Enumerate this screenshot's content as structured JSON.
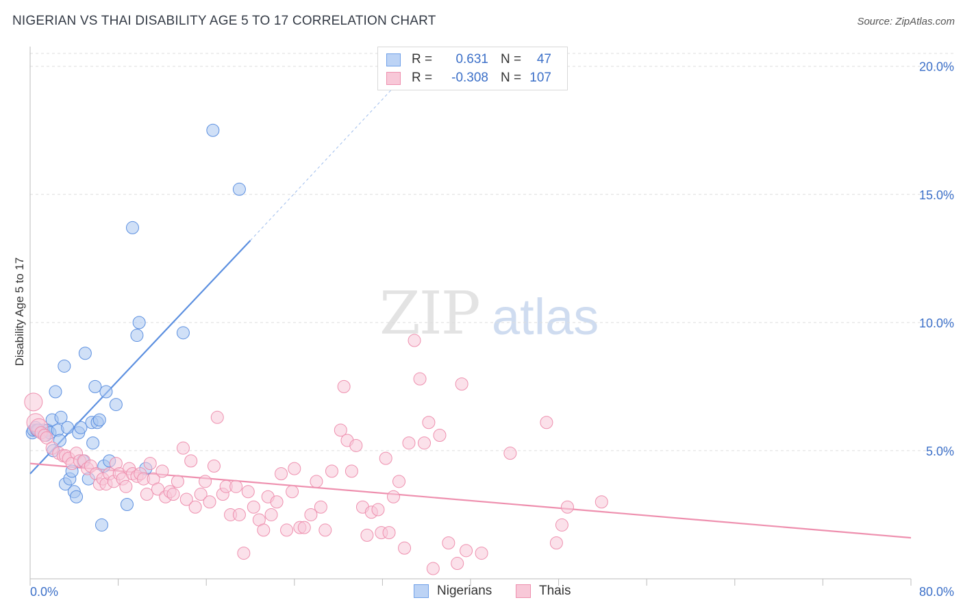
{
  "title": "NIGERIAN VS THAI DISABILITY AGE 5 TO 17 CORRELATION CHART",
  "source": "Source: ZipAtlas.com",
  "watermark": {
    "zip": "ZIP",
    "atlas": "atlas"
  },
  "legend": {
    "rows": [
      {
        "r_label": "R =",
        "r_value": "0.631",
        "n_label": "N =",
        "n_value": "47",
        "color": "#6fa0e8",
        "fill": "#bcd3f5"
      },
      {
        "r_label": "R =",
        "r_value": "-0.308",
        "n_label": "N =",
        "n_value": "107",
        "color": "#ee8fae",
        "fill": "#f8c8d8"
      }
    ]
  },
  "bottom_legend": [
    {
      "label": "Nigerians",
      "color": "#6fa0e8",
      "fill": "#bcd3f5"
    },
    {
      "label": "Thais",
      "color": "#ee8fae",
      "fill": "#f8c8d8"
    }
  ],
  "axes": {
    "x_min_label": "0.0%",
    "x_max_label": "80.0%",
    "y_ticks": [
      "5.0%",
      "10.0%",
      "15.0%",
      "20.0%"
    ],
    "ylabel": "Disability Age 5 to 17"
  },
  "chart_data": {
    "type": "scatter",
    "title": "NIGERIAN VS THAI DISABILITY AGE 5 TO 17 CORRELATION CHART",
    "xlabel": "",
    "ylabel": "Disability Age 5 to 17",
    "xlim": [
      0,
      80
    ],
    "ylim": [
      0,
      20.5
    ],
    "grid": true,
    "series": [
      {
        "name": "Nigerians",
        "color": "#5b8fe0",
        "fill": "#a9c6f0",
        "points": [
          [
            0.2,
            5.7
          ],
          [
            0.3,
            5.8
          ],
          [
            0.5,
            5.9
          ],
          [
            0.6,
            5.8
          ],
          [
            0.8,
            5.8
          ],
          [
            1.0,
            5.7
          ],
          [
            1.2,
            5.8
          ],
          [
            1.4,
            5.6
          ],
          [
            1.6,
            5.8
          ],
          [
            1.8,
            5.7
          ],
          [
            2.0,
            6.2
          ],
          [
            2.1,
            5.0
          ],
          [
            2.3,
            7.3
          ],
          [
            2.5,
            5.8
          ],
          [
            2.7,
            5.4
          ],
          [
            2.8,
            6.3
          ],
          [
            3.1,
            8.3
          ],
          [
            3.2,
            3.7
          ],
          [
            3.4,
            5.9
          ],
          [
            3.6,
            3.9
          ],
          [
            3.8,
            4.2
          ],
          [
            4.0,
            3.4
          ],
          [
            4.2,
            3.2
          ],
          [
            4.4,
            5.7
          ],
          [
            4.6,
            5.9
          ],
          [
            4.8,
            4.6
          ],
          [
            5.0,
            8.8
          ],
          [
            5.3,
            3.9
          ],
          [
            5.6,
            6.1
          ],
          [
            5.7,
            5.3
          ],
          [
            5.9,
            7.5
          ],
          [
            6.1,
            6.1
          ],
          [
            6.3,
            6.2
          ],
          [
            6.5,
            2.1
          ],
          [
            6.7,
            4.4
          ],
          [
            6.9,
            7.3
          ],
          [
            7.2,
            4.6
          ],
          [
            7.8,
            6.8
          ],
          [
            8.8,
            2.9
          ],
          [
            9.3,
            13.7
          ],
          [
            9.7,
            9.5
          ],
          [
            9.9,
            10.0
          ],
          [
            10.5,
            4.3
          ],
          [
            13.9,
            9.6
          ],
          [
            16.6,
            17.5
          ],
          [
            19.0,
            15.2
          ],
          [
            0.7,
            5.8
          ]
        ],
        "trend": {
          "x0": 0,
          "y0": 4.1,
          "x1": 20.0,
          "y1": 13.2,
          "dash_x1": 33.5,
          "dash_y1": 19.4
        }
      },
      {
        "name": "Thais",
        "color": "#ee8fae",
        "fill": "#f8c8d8",
        "points": [
          [
            0.3,
            6.9
          ],
          [
            0.5,
            6.1
          ],
          [
            0.8,
            5.9
          ],
          [
            1.0,
            5.7
          ],
          [
            1.3,
            5.6
          ],
          [
            1.5,
            5.5
          ],
          [
            2.0,
            5.1
          ],
          [
            2.6,
            4.9
          ],
          [
            3.0,
            4.8
          ],
          [
            3.2,
            4.8
          ],
          [
            3.5,
            4.7
          ],
          [
            3.8,
            4.5
          ],
          [
            4.2,
            4.9
          ],
          [
            4.5,
            4.6
          ],
          [
            4.9,
            4.6
          ],
          [
            5.2,
            4.3
          ],
          [
            5.5,
            4.4
          ],
          [
            6.0,
            4.1
          ],
          [
            6.3,
            3.7
          ],
          [
            6.6,
            3.9
          ],
          [
            6.9,
            3.7
          ],
          [
            7.2,
            4.1
          ],
          [
            7.6,
            3.8
          ],
          [
            7.8,
            4.5
          ],
          [
            8.1,
            4.1
          ],
          [
            8.4,
            3.9
          ],
          [
            8.7,
            3.6
          ],
          [
            9.0,
            4.3
          ],
          [
            9.3,
            4.1
          ],
          [
            9.7,
            4.0
          ],
          [
            10.0,
            4.1
          ],
          [
            10.3,
            3.9
          ],
          [
            10.6,
            3.3
          ],
          [
            10.9,
            4.5
          ],
          [
            11.2,
            3.9
          ],
          [
            11.6,
            3.5
          ],
          [
            12.0,
            4.2
          ],
          [
            12.3,
            3.2
          ],
          [
            12.7,
            3.4
          ],
          [
            13.0,
            3.3
          ],
          [
            13.4,
            3.8
          ],
          [
            13.9,
            5.1
          ],
          [
            14.2,
            3.1
          ],
          [
            14.6,
            4.6
          ],
          [
            15.0,
            2.8
          ],
          [
            15.5,
            3.3
          ],
          [
            15.9,
            3.8
          ],
          [
            16.3,
            3.0
          ],
          [
            16.7,
            4.4
          ],
          [
            17.0,
            6.3
          ],
          [
            17.5,
            3.3
          ],
          [
            17.8,
            3.6
          ],
          [
            18.2,
            2.5
          ],
          [
            18.7,
            3.6
          ],
          [
            19.0,
            2.5
          ],
          [
            19.4,
            1.0
          ],
          [
            19.8,
            3.4
          ],
          [
            20.3,
            2.8
          ],
          [
            20.8,
            2.3
          ],
          [
            21.2,
            1.9
          ],
          [
            21.6,
            3.2
          ],
          [
            21.9,
            2.5
          ],
          [
            22.4,
            3.0
          ],
          [
            22.8,
            4.1
          ],
          [
            23.3,
            1.9
          ],
          [
            23.8,
            3.4
          ],
          [
            24.0,
            4.3
          ],
          [
            24.5,
            2.0
          ],
          [
            24.9,
            2.0
          ],
          [
            25.5,
            2.5
          ],
          [
            26.0,
            3.8
          ],
          [
            26.4,
            2.8
          ],
          [
            26.8,
            1.9
          ],
          [
            27.4,
            4.2
          ],
          [
            28.2,
            5.8
          ],
          [
            28.5,
            7.5
          ],
          [
            28.8,
            5.4
          ],
          [
            29.2,
            4.2
          ],
          [
            29.6,
            5.2
          ],
          [
            30.2,
            2.8
          ],
          [
            30.6,
            1.7
          ],
          [
            31.0,
            2.6
          ],
          [
            31.6,
            2.7
          ],
          [
            31.9,
            1.8
          ],
          [
            32.3,
            4.7
          ],
          [
            32.6,
            1.8
          ],
          [
            33.0,
            3.2
          ],
          [
            33.5,
            3.8
          ],
          [
            34.0,
            1.2
          ],
          [
            34.4,
            5.3
          ],
          [
            34.9,
            9.3
          ],
          [
            35.4,
            7.8
          ],
          [
            35.8,
            5.3
          ],
          [
            36.2,
            6.1
          ],
          [
            36.6,
            0.4
          ],
          [
            37.2,
            5.6
          ],
          [
            38.0,
            1.4
          ],
          [
            38.8,
            0.6
          ],
          [
            39.2,
            7.6
          ],
          [
            39.6,
            1.1
          ],
          [
            41.0,
            1.0
          ],
          [
            43.6,
            4.9
          ],
          [
            46.9,
            6.1
          ],
          [
            47.8,
            1.4
          ],
          [
            48.3,
            2.1
          ],
          [
            48.8,
            2.8
          ],
          [
            51.9,
            3.0
          ]
        ],
        "trend": {
          "x0": 0,
          "y0": 4.5,
          "x1": 80,
          "y1": 1.6
        }
      }
    ]
  }
}
